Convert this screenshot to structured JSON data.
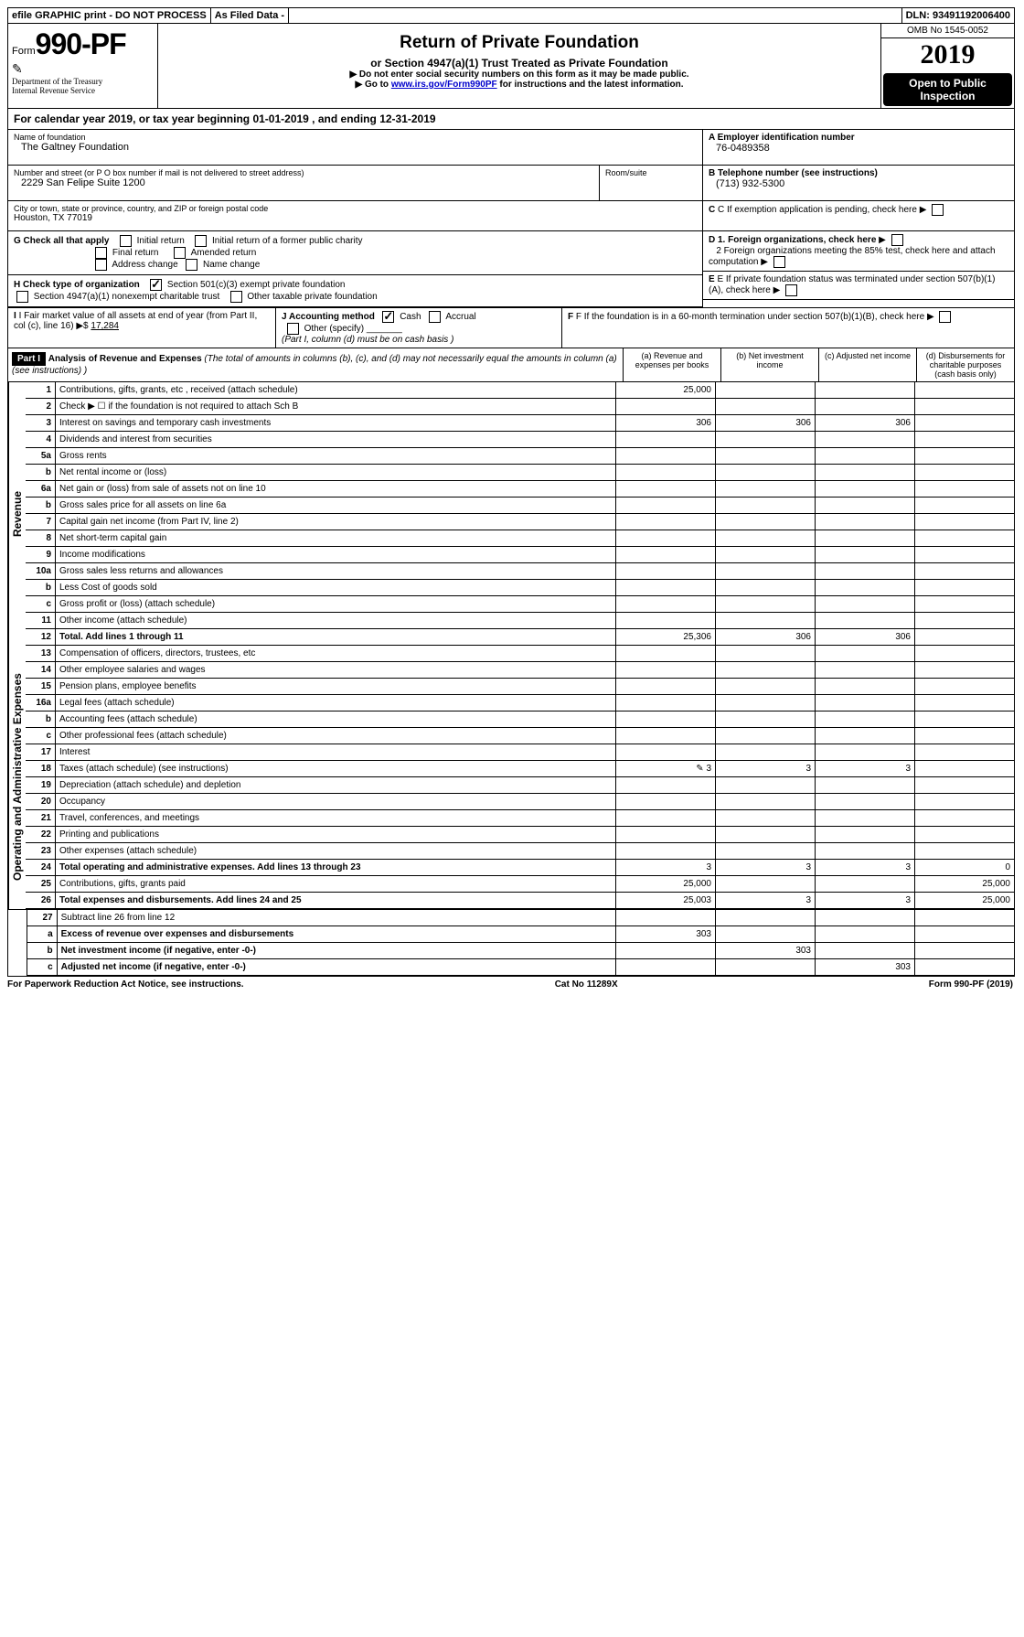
{
  "topbar": {
    "efile": "efile GRAPHIC print - DO NOT PROCESS",
    "asfiled": "As Filed Data -",
    "dln_label": "DLN:",
    "dln": "93491192006400"
  },
  "header": {
    "form_prefix": "Form",
    "form_number": "990-PF",
    "dept1": "Department of the Treasury",
    "dept2": "Internal Revenue Service",
    "title": "Return of Private Foundation",
    "subtitle": "or Section 4947(a)(1) Trust Treated as Private Foundation",
    "instr1": "▶ Do not enter social security numbers on this form as it may be made public.",
    "instr2_pre": "▶ Go to ",
    "instr2_link": "www.irs.gov/Form990PF",
    "instr2_post": " for instructions and the latest information.",
    "omb": "OMB No 1545-0052",
    "year": "2019",
    "open1": "Open to Public",
    "open2": "Inspection"
  },
  "calyear": {
    "pre": "For calendar year 2019, or tax year beginning ",
    "begin": "01-01-2019",
    "mid": " , and ending ",
    "end": "12-31-2019"
  },
  "info": {
    "name_label": "Name of foundation",
    "name": "The Galtney Foundation",
    "addr_label": "Number and street (or P O  box number if mail is not delivered to street address)",
    "addr": "2229 San Felipe Suite 1200",
    "room_label": "Room/suite",
    "city_label": "City or town, state or province, country, and ZIP or foreign postal code",
    "city": "Houston, TX  77019",
    "ein_label": "A Employer identification number",
    "ein": "76-0489358",
    "phone_label": "B Telephone number (see instructions)",
    "phone": "(713) 932-5300",
    "c_label": "C If exemption application is pending, check here",
    "d1": "D 1. Foreign organizations, check here",
    "d2": "2 Foreign organizations meeting the 85% test, check here and attach computation",
    "e": "E If private foundation status was terminated under section 507(b)(1)(A), check here",
    "f": "F If the foundation is in a 60-month termination under section 507(b)(1)(B), check here"
  },
  "g": {
    "label": "G Check all that apply",
    "initial": "Initial return",
    "initial_former": "Initial return of a former public charity",
    "final": "Final return",
    "amended": "Amended return",
    "addr_change": "Address change",
    "name_change": "Name change"
  },
  "h": {
    "label": "H Check type of organization",
    "opt1": "Section 501(c)(3) exempt private foundation",
    "opt2": "Section 4947(a)(1) nonexempt charitable trust",
    "opt3": "Other taxable private foundation"
  },
  "i": {
    "label": "I Fair market value of all assets at end of year (from Part II, col  (c), line 16)",
    "arrow": "▶$",
    "value": "17,284"
  },
  "j": {
    "label": "J Accounting method",
    "cash": "Cash",
    "accrual": "Accrual",
    "other": "Other (specify)",
    "note": "(Part I, column (d) must be on cash basis )"
  },
  "part1": {
    "tag": "Part I",
    "title": "Analysis of Revenue and Expenses",
    "note": "(The total of amounts in columns (b), (c), and (d) may not necessarily equal the amounts in column (a) (see instructions) )",
    "col_a": "(a) Revenue and expenses per books",
    "col_b": "(b) Net investment income",
    "col_c": "(c) Adjusted net income",
    "col_d": "(d) Disbursements for charitable purposes (cash basis only)"
  },
  "sides": {
    "revenue": "Revenue",
    "expenses": "Operating and Administrative Expenses"
  },
  "rows": [
    {
      "n": "1",
      "d": "Contributions, gifts, grants, etc , received (attach schedule)",
      "a": "25,000",
      "b": "",
      "c": "",
      "dd": ""
    },
    {
      "n": "2",
      "d": "Check ▶ ☐ if the foundation is not required to attach Sch  B",
      "a": "",
      "b": "",
      "c": "",
      "dd": "",
      "nobold": true
    },
    {
      "n": "3",
      "d": "Interest on savings and temporary cash investments",
      "a": "306",
      "b": "306",
      "c": "306",
      "dd": ""
    },
    {
      "n": "4",
      "d": "Dividends and interest from securities",
      "a": "",
      "b": "",
      "c": "",
      "dd": ""
    },
    {
      "n": "5a",
      "d": "Gross rents",
      "a": "",
      "b": "",
      "c": "",
      "dd": ""
    },
    {
      "n": "b",
      "d": "Net rental income or (loss)",
      "a": "",
      "b": "",
      "c": "",
      "dd": ""
    },
    {
      "n": "6a",
      "d": "Net gain or (loss) from sale of assets not on line 10",
      "a": "",
      "b": "",
      "c": "",
      "dd": ""
    },
    {
      "n": "b",
      "d": "Gross sales price for all assets on line 6a",
      "a": "",
      "b": "",
      "c": "",
      "dd": ""
    },
    {
      "n": "7",
      "d": "Capital gain net income (from Part IV, line 2)",
      "a": "",
      "b": "",
      "c": "",
      "dd": ""
    },
    {
      "n": "8",
      "d": "Net short-term capital gain",
      "a": "",
      "b": "",
      "c": "",
      "dd": ""
    },
    {
      "n": "9",
      "d": "Income modifications",
      "a": "",
      "b": "",
      "c": "",
      "dd": ""
    },
    {
      "n": "10a",
      "d": "Gross sales less returns and allowances",
      "a": "",
      "b": "",
      "c": "",
      "dd": ""
    },
    {
      "n": "b",
      "d": "Less  Cost of goods sold",
      "a": "",
      "b": "",
      "c": "",
      "dd": ""
    },
    {
      "n": "c",
      "d": "Gross profit or (loss) (attach schedule)",
      "a": "",
      "b": "",
      "c": "",
      "dd": ""
    },
    {
      "n": "11",
      "d": "Other income (attach schedule)",
      "a": "",
      "b": "",
      "c": "",
      "dd": ""
    },
    {
      "n": "12",
      "d": "Total. Add lines 1 through 11",
      "a": "25,306",
      "b": "306",
      "c": "306",
      "dd": "",
      "bold": true
    }
  ],
  "exp_rows": [
    {
      "n": "13",
      "d": "Compensation of officers, directors, trustees, etc",
      "a": "",
      "b": "",
      "c": "",
      "dd": ""
    },
    {
      "n": "14",
      "d": "Other employee salaries and wages",
      "a": "",
      "b": "",
      "c": "",
      "dd": ""
    },
    {
      "n": "15",
      "d": "Pension plans, employee benefits",
      "a": "",
      "b": "",
      "c": "",
      "dd": ""
    },
    {
      "n": "16a",
      "d": "Legal fees (attach schedule)",
      "a": "",
      "b": "",
      "c": "",
      "dd": ""
    },
    {
      "n": "b",
      "d": "Accounting fees (attach schedule)",
      "a": "",
      "b": "",
      "c": "",
      "dd": ""
    },
    {
      "n": "c",
      "d": "Other professional fees (attach schedule)",
      "a": "",
      "b": "",
      "c": "",
      "dd": ""
    },
    {
      "n": "17",
      "d": "Interest",
      "a": "",
      "b": "",
      "c": "",
      "dd": ""
    },
    {
      "n": "18",
      "d": "Taxes (attach schedule) (see instructions)",
      "a": "3",
      "b": "3",
      "c": "3",
      "dd": "",
      "icon": true
    },
    {
      "n": "19",
      "d": "Depreciation (attach schedule) and depletion",
      "a": "",
      "b": "",
      "c": "",
      "dd": ""
    },
    {
      "n": "20",
      "d": "Occupancy",
      "a": "",
      "b": "",
      "c": "",
      "dd": ""
    },
    {
      "n": "21",
      "d": "Travel, conferences, and meetings",
      "a": "",
      "b": "",
      "c": "",
      "dd": ""
    },
    {
      "n": "22",
      "d": "Printing and publications",
      "a": "",
      "b": "",
      "c": "",
      "dd": ""
    },
    {
      "n": "23",
      "d": "Other expenses (attach schedule)",
      "a": "",
      "b": "",
      "c": "",
      "dd": ""
    },
    {
      "n": "24",
      "d": "Total operating and administrative expenses. Add lines 13 through 23",
      "a": "3",
      "b": "3",
      "c": "3",
      "dd": "0",
      "bold": true
    },
    {
      "n": "25",
      "d": "Contributions, gifts, grants paid",
      "a": "25,000",
      "b": "",
      "c": "",
      "dd": "25,000"
    },
    {
      "n": "26",
      "d": "Total expenses and disbursements. Add lines 24 and 25",
      "a": "25,003",
      "b": "3",
      "c": "3",
      "dd": "25,000",
      "bold": true
    }
  ],
  "bottom_rows": [
    {
      "n": "27",
      "d": "Subtract line 26 from line 12",
      "a": "",
      "b": "",
      "c": "",
      "dd": ""
    },
    {
      "n": "a",
      "d": "Excess of revenue over expenses and disbursements",
      "a": "303",
      "b": "",
      "c": "",
      "dd": "",
      "bold": true
    },
    {
      "n": "b",
      "d": "Net investment income (if negative, enter -0-)",
      "a": "",
      "b": "303",
      "c": "",
      "dd": "",
      "bold": true
    },
    {
      "n": "c",
      "d": "Adjusted net income (if negative, enter -0-)",
      "a": "",
      "b": "",
      "c": "303",
      "dd": "",
      "bold": true
    }
  ],
  "footer": {
    "left": "For Paperwork Reduction Act Notice, see instructions.",
    "mid": "Cat  No  11289X",
    "right": "Form 990-PF (2019)"
  }
}
